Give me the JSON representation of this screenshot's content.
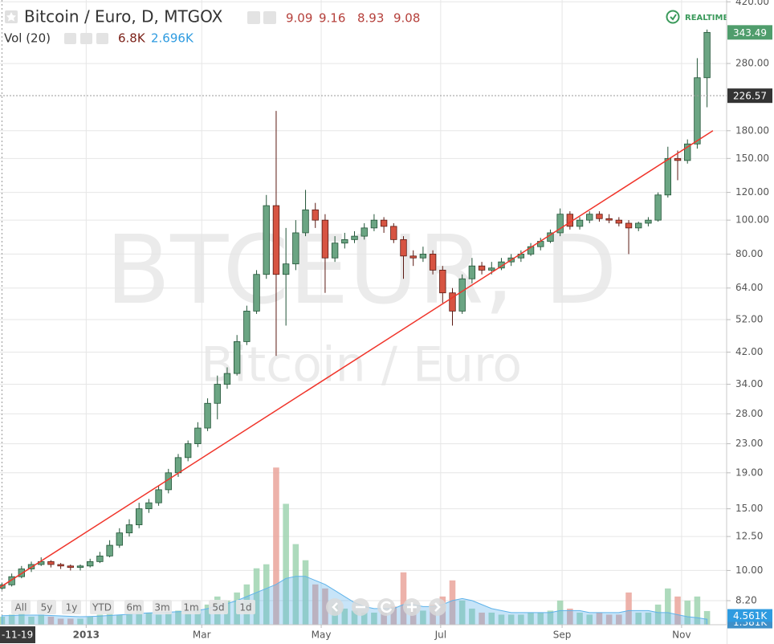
{
  "chart_data": {
    "type": "candlestick",
    "title": "Bitcoin / Euro, D, MTGOX",
    "legend_values": [
      9.09,
      9.16,
      8.93,
      9.08
    ],
    "volume_title": "Vol (20)",
    "volume_legend": [
      {
        "value": 6.8,
        "label": "6.8K"
      },
      {
        "value": 2.696,
        "label": "2.696K"
      }
    ],
    "realtime_badge": "REALTIME",
    "watermark": [
      "BTCEUR, D",
      "Bitcoin / Euro"
    ],
    "range_buttons": [
      "All",
      "5y",
      "1y",
      "YTD",
      "6m",
      "3m",
      "1m",
      "5d",
      "1d"
    ],
    "x": [
      "2012-11-19",
      "2012-11-24",
      "2012-11-29",
      "2012-12-04",
      "2012-12-09",
      "2012-12-14",
      "2012-12-19",
      "2012-12-24",
      "2012-12-29",
      "2013-01-03",
      "2013-01-08",
      "2013-01-13",
      "2013-01-18",
      "2013-01-23",
      "2013-01-28",
      "2013-02-02",
      "2013-02-07",
      "2013-02-12",
      "2013-02-17",
      "2013-02-22",
      "2013-02-27",
      "2013-03-04",
      "2013-03-09",
      "2013-03-14",
      "2013-03-19",
      "2013-03-24",
      "2013-03-29",
      "2013-04-03",
      "2013-04-08",
      "2013-04-13",
      "2013-04-18",
      "2013-04-23",
      "2013-04-28",
      "2013-05-03",
      "2013-05-08",
      "2013-05-13",
      "2013-05-18",
      "2013-05-23",
      "2013-05-28",
      "2013-06-02",
      "2013-06-07",
      "2013-06-12",
      "2013-06-17",
      "2013-06-22",
      "2013-06-27",
      "2013-07-02",
      "2013-07-07",
      "2013-07-12",
      "2013-07-17",
      "2013-07-22",
      "2013-07-27",
      "2013-08-01",
      "2013-08-06",
      "2013-08-11",
      "2013-08-16",
      "2013-08-21",
      "2013-08-26",
      "2013-08-31",
      "2013-09-05",
      "2013-09-10",
      "2013-09-15",
      "2013-09-20",
      "2013-09-25",
      "2013-09-30",
      "2013-10-05",
      "2013-10-10",
      "2013-10-15",
      "2013-10-20",
      "2013-10-25",
      "2013-10-30",
      "2013-11-04",
      "2013-11-09",
      "2013-11-14"
    ],
    "open": [
      8.9,
      9.1,
      9.6,
      10.1,
      10.4,
      10.6,
      10.4,
      10.3,
      10.2,
      10.3,
      10.6,
      11.0,
      11.8,
      12.8,
      13.5,
      15.0,
      15.6,
      17.0,
      19.0,
      21.0,
      23.0,
      25.5,
      30.0,
      34.0,
      36.5,
      45.0,
      55.0,
      70.0,
      110,
      70,
      75,
      92,
      107,
      100,
      78,
      86,
      88,
      90,
      95,
      100,
      96,
      88,
      79,
      78,
      80,
      72,
      62,
      55,
      68,
      74,
      72,
      73,
      76,
      78,
      80,
      84,
      87,
      92,
      104,
      96,
      100,
      104,
      101,
      100,
      98,
      95,
      98,
      100,
      118,
      150,
      148,
      165,
      255
    ],
    "high": [
      9.2,
      9.8,
      10.3,
      10.6,
      10.9,
      10.7,
      10.5,
      10.4,
      10.4,
      10.8,
      11.3,
      12.2,
      13.2,
      14.0,
      15.6,
      16.0,
      17.5,
      19.5,
      21.5,
      23.5,
      26.5,
      31.0,
      36.0,
      38.0,
      47.0,
      57.0,
      72.0,
      118,
      205,
      95,
      100,
      122,
      112,
      104,
      90,
      92,
      93,
      98,
      104,
      102,
      98,
      90,
      82,
      84,
      82,
      74,
      64,
      70,
      78,
      76,
      76,
      78,
      80,
      82,
      86,
      89,
      94,
      108,
      106,
      102,
      106,
      106,
      104,
      102,
      100,
      99,
      102,
      120,
      162,
      158,
      170,
      290,
      350
    ],
    "low": [
      8.8,
      9.0,
      9.5,
      9.9,
      10.3,
      10.2,
      10.1,
      10.0,
      10.0,
      10.2,
      10.5,
      10.9,
      11.6,
      12.5,
      13.2,
      14.6,
      15.3,
      16.6,
      18.5,
      20.5,
      22.5,
      25.0,
      27.0,
      33.0,
      36.0,
      44.0,
      54.0,
      68.0,
      41,
      50,
      72,
      90,
      95,
      62,
      76,
      83,
      86,
      88,
      93,
      92,
      86,
      68,
      74,
      76,
      70,
      58,
      50,
      54,
      66,
      70,
      70,
      72,
      74,
      76,
      79,
      82,
      86,
      90,
      94,
      94,
      98,
      99,
      98,
      96,
      80,
      93,
      96,
      99,
      116,
      130,
      145,
      160,
      210
    ],
    "close": [
      9.1,
      9.6,
      10.1,
      10.4,
      10.6,
      10.4,
      10.3,
      10.2,
      10.3,
      10.6,
      11.0,
      11.8,
      12.8,
      13.5,
      15.0,
      15.6,
      17.0,
      19.0,
      21.0,
      23.0,
      25.5,
      30.0,
      34.0,
      36.5,
      45.0,
      55.0,
      70.0,
      110,
      70,
      75,
      92,
      107,
      100,
      78,
      86,
      88,
      90,
      95,
      100,
      96,
      88,
      79,
      78,
      80,
      72,
      62,
      55,
      68,
      74,
      72,
      73,
      76,
      78,
      80,
      84,
      87,
      92,
      104,
      96,
      100,
      104,
      101,
      100,
      98,
      95,
      98,
      100,
      118,
      150,
      148,
      165,
      255,
      343.49
    ],
    "volume": [
      4,
      5,
      6,
      4,
      5,
      4,
      3,
      3,
      3,
      4,
      5,
      6,
      5,
      6,
      7,
      6,
      5,
      6,
      7,
      6,
      8,
      10,
      14,
      12,
      16,
      20,
      28,
      30,
      78,
      60,
      40,
      32,
      20,
      18,
      10,
      8,
      7,
      6,
      6,
      7,
      9,
      26,
      8,
      7,
      10,
      14,
      22,
      12,
      8,
      6,
      6,
      5,
      5,
      5,
      6,
      6,
      7,
      12,
      8,
      6,
      5,
      6,
      5,
      5,
      16,
      6,
      6,
      10,
      18,
      14,
      12,
      14,
      6.8
    ],
    "vol_ma": [
      4.5,
      4.6,
      4.8,
      4.8,
      4.8,
      4.6,
      4.4,
      4.2,
      4.0,
      4.1,
      4.3,
      4.6,
      4.9,
      5.2,
      5.6,
      5.9,
      6.0,
      6.2,
      6.5,
      6.6,
      7.0,
      8.0,
      9.5,
      10.5,
      12,
      14,
      16,
      18,
      20,
      23,
      24,
      24,
      22,
      20,
      17,
      14,
      11,
      9,
      8,
      8,
      8,
      10,
      10,
      9,
      9,
      10,
      12,
      13,
      12,
      10,
      8,
      7,
      6,
      6,
      6,
      6,
      6,
      7,
      7,
      7,
      6,
      6,
      6,
      6,
      7,
      7,
      7,
      6,
      6,
      5,
      4,
      3.5,
      2.696
    ],
    "up_color": "#6ba583",
    "up_stroke": "#225437",
    "down_color": "#d75442",
    "down_stroke": "#5b1a13",
    "vol_up_color": "#9fd4b0",
    "vol_down_color": "#eaa59b",
    "vol_ma_color": "#5fb3ea",
    "log": true,
    "ylim": [
      7,
      425
    ],
    "yticks": [
      {
        "value": 420,
        "label": "420.00"
      },
      {
        "value": 280,
        "label": "280.00"
      },
      {
        "value": 180,
        "label": "180.00"
      },
      {
        "value": 150,
        "label": "150.00"
      },
      {
        "value": 120,
        "label": "120.00"
      },
      {
        "value": 100,
        "label": "100.00"
      },
      {
        "value": 80,
        "label": "80.00"
      },
      {
        "value": 64,
        "label": "64.00"
      },
      {
        "value": 52,
        "label": "52.00"
      },
      {
        "value": 42,
        "label": "42.00"
      },
      {
        "value": 34,
        "label": "34.00"
      },
      {
        "value": 28,
        "label": "28.00"
      },
      {
        "value": 23,
        "label": "23.00"
      },
      {
        "value": 19,
        "label": "19.00"
      },
      {
        "value": 15,
        "label": "15.00"
      },
      {
        "value": 12.5,
        "label": "12.50"
      },
      {
        "value": 10,
        "label": "10.00"
      },
      {
        "value": 8.2,
        "label": "8.20"
      }
    ],
    "vol_ylim": [
      0,
      310
    ],
    "vol_labels": [
      {
        "value": 1.381,
        "label": "1.381K"
      },
      {
        "value": 4.561,
        "label": "4.561K"
      }
    ],
    "xlim": [
      "2012-11-18",
      "2013-11-24"
    ],
    "xticks": [
      {
        "value": "2012-11-19",
        "label": "-11-19"
      },
      {
        "value": "2013-01-01",
        "label": "2013"
      },
      {
        "value": "2013-03-01",
        "label": "Mar"
      },
      {
        "value": "2013-05-01",
        "label": "May"
      },
      {
        "value": "2013-07-01",
        "label": "Jul"
      },
      {
        "value": "2013-09-01",
        "label": "Sep"
      },
      {
        "value": "2013-11-01",
        "label": "Nov"
      }
    ],
    "grid": true,
    "hline": 226.57,
    "last_price_color": "#4f9d6c",
    "trendline": {
      "x": [
        "2012-11-18",
        "2013-11-17"
      ],
      "values": [
        8.95,
        180
      ],
      "color": "#f0352b"
    }
  }
}
